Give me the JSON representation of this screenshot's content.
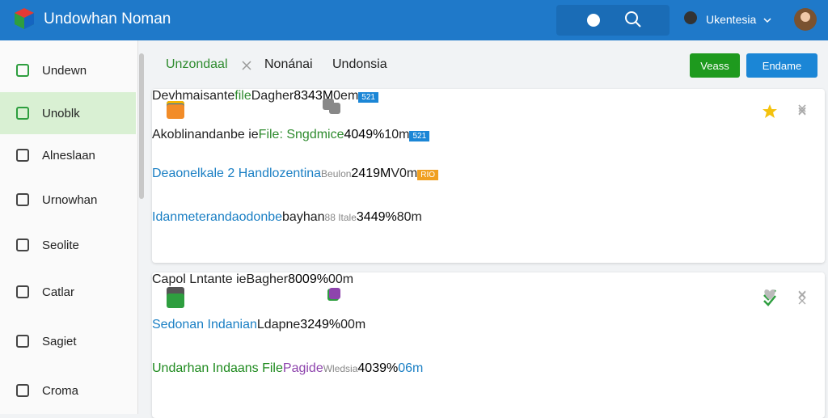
{
  "header": {
    "title": "Undowhan Noman",
    "user": "Ukentesia"
  },
  "sidebar": {
    "items": [
      "Undewn",
      "Unoblk",
      "Alneslaan",
      "Urnowhan",
      "Seolite",
      "Catlar",
      "Sagiet",
      "Croma"
    ],
    "active": 1
  },
  "tabs": [
    "Unzondaal",
    "Nonánai",
    "Undonsia"
  ],
  "buttons": [
    "Veass",
    "Endame"
  ],
  "cards": [
    {
      "rows": [
        {
          "title": "Devhmaisante",
          "tag": "file",
          "label": "Dagher",
          "size": "8343M",
          "time": "0em",
          "status": "badge",
          "badge": "521"
        },
        {
          "title": "Akoblinandanbe ie",
          "tag": "File: Sngdmice",
          "size": "4049%",
          "time": "10m",
          "status": "badge",
          "badge": "521"
        },
        {
          "title": "Deaonelkale 2 Handlozentina",
          "sub": "Beulon",
          "size": "2419M",
          "time": "V0m",
          "status": "badge",
          "badge": "RIO"
        },
        {
          "title": "Idanmeterandaodonbe",
          "label": "bayhan",
          "sub": "88 Itale",
          "size": "3449%",
          "time": "80m",
          "status": "star"
        }
      ]
    },
    {
      "rows": [
        {
          "title": "Capol Lntante ie",
          "label": "Bagher",
          "size": "8009%",
          "time": "00m",
          "status": "check"
        },
        {
          "title": "Sedonan Indanian",
          "label": "Ldapne",
          "size": "3249%",
          "time": "00m",
          "status": "heart"
        },
        {
          "title": "Undarhan Indaans File",
          "label": "Pagide",
          "sub": "Wledsia",
          "size": "4039%",
          "time": "06m",
          "status": "check"
        }
      ]
    }
  ]
}
